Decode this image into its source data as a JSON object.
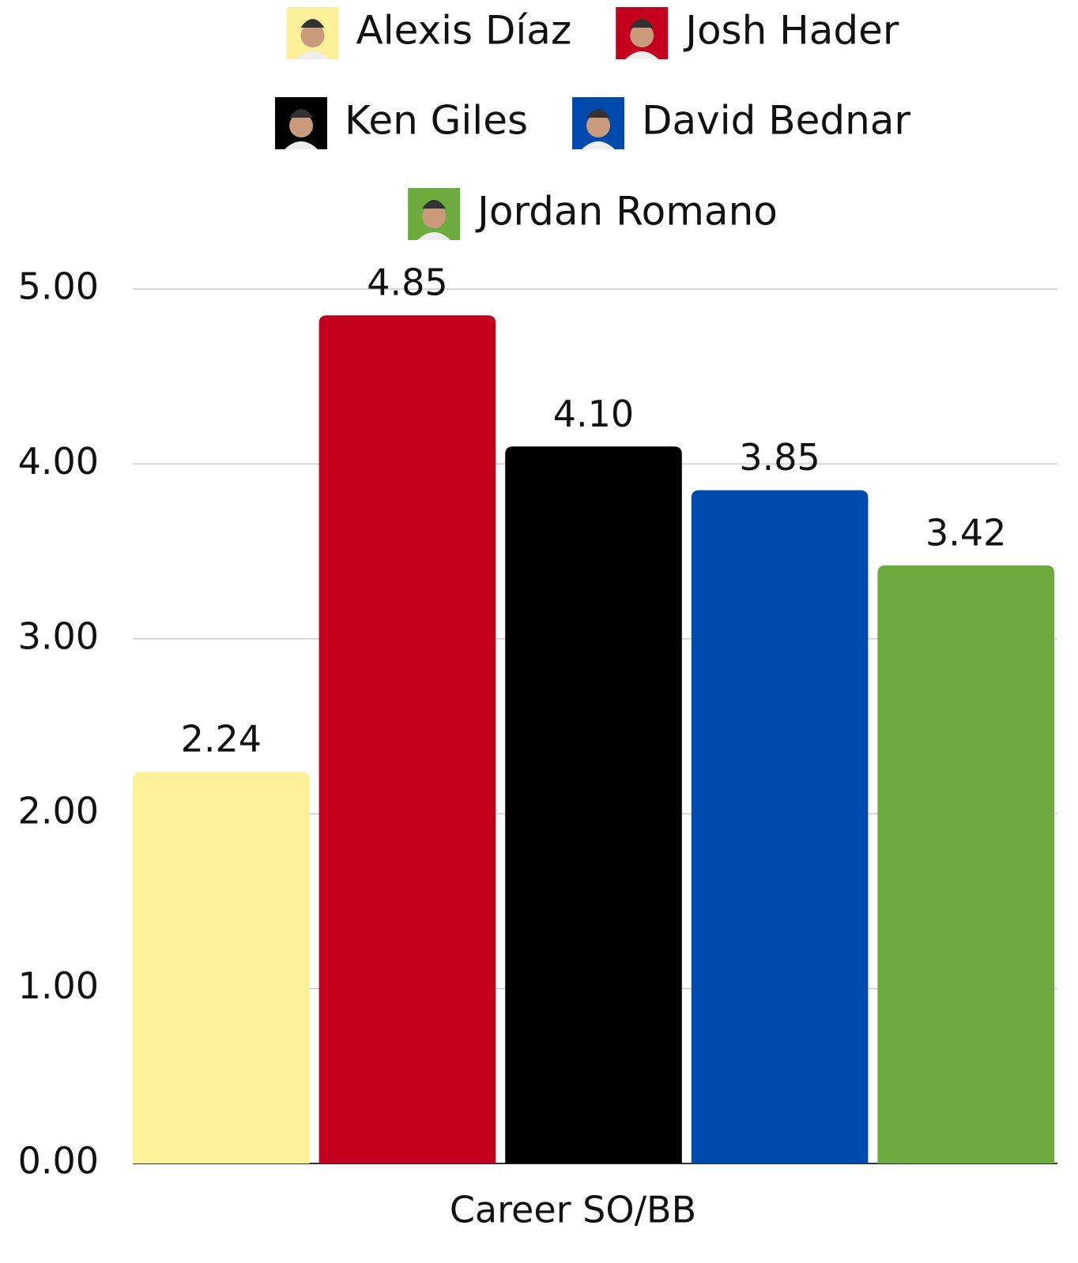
{
  "chart_data": {
    "type": "bar",
    "categories": [
      "Career SO/BB"
    ],
    "series": [
      {
        "name": "Alexis Díaz",
        "color": "#fdf09a",
        "values": [
          2.24
        ],
        "value_labels": [
          "2.24"
        ]
      },
      {
        "name": "Josh Hader",
        "color": "#c4001f",
        "values": [
          4.85
        ],
        "value_labels": [
          "4.85"
        ]
      },
      {
        "name": "Ken Giles",
        "color": "#000000",
        "values": [
          4.1
        ],
        "value_labels": [
          "4.10"
        ]
      },
      {
        "name": "David Bednar",
        "color": "#004aad",
        "values": [
          3.85
        ],
        "value_labels": [
          "3.85"
        ]
      },
      {
        "name": "Jordan Romano",
        "color": "#6eab3e",
        "values": [
          3.42
        ],
        "value_labels": [
          "3.42"
        ]
      }
    ],
    "ylim": [
      0,
      5
    ],
    "yticks": [
      {
        "value": 0,
        "label": "0.00"
      },
      {
        "value": 1,
        "label": "1.00"
      },
      {
        "value": 2,
        "label": "2.00"
      },
      {
        "value": 3,
        "label": "3.00"
      },
      {
        "value": 4,
        "label": "4.00"
      },
      {
        "value": 5,
        "label": "5.00"
      }
    ],
    "grid": true,
    "legend": "top"
  }
}
